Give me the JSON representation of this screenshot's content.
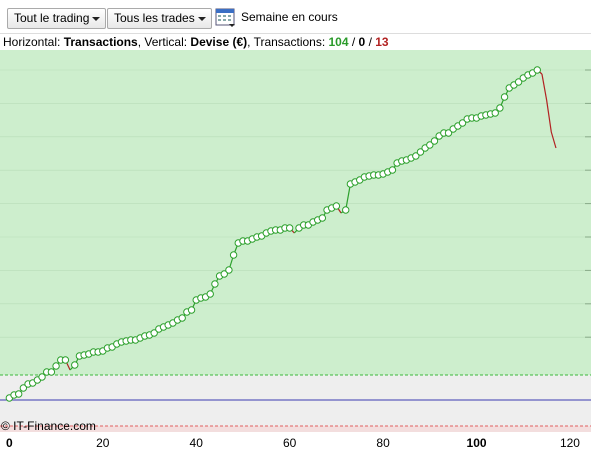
{
  "toolbar": {
    "trading_filter": "Tout le trading",
    "trade_filter": "Tous les trades",
    "period": "Semaine en cours"
  },
  "header": {
    "horizontal_label": "Horizontal: ",
    "horizontal_value": "Transactions",
    "vertical_label": ", Vertical: ",
    "vertical_value": "Devise (€)",
    "transactions_label": ", Transactions: ",
    "wins": 104,
    "separator_1": " / ",
    "neutral": 0,
    "separator_2": " / ",
    "losses": 13
  },
  "watermark": "© IT-Finance.com",
  "chart_data": {
    "type": "line",
    "x": [
      0,
      1,
      2,
      3,
      4,
      5,
      6,
      7,
      8,
      9,
      10,
      11,
      12,
      13,
      14,
      15,
      16,
      17,
      18,
      19,
      20,
      21,
      22,
      23,
      24,
      25,
      26,
      27,
      28,
      29,
      30,
      31,
      32,
      33,
      34,
      35,
      36,
      37,
      38,
      39,
      40,
      41,
      42,
      43,
      44,
      45,
      46,
      47,
      48,
      49,
      50,
      51,
      52,
      53,
      54,
      55,
      56,
      57,
      58,
      59,
      60,
      61,
      62,
      63,
      64,
      65,
      66,
      67,
      68,
      69,
      70,
      71,
      72,
      73,
      74,
      75,
      76,
      77,
      78,
      79,
      80,
      81,
      82,
      83,
      84,
      85,
      86,
      87,
      88,
      89,
      90,
      91,
      92,
      93,
      94,
      95,
      96,
      97,
      98,
      99,
      100,
      101,
      102,
      103,
      104,
      105,
      106,
      107,
      108,
      109,
      110,
      111,
      112,
      113,
      114,
      115,
      116,
      117
    ],
    "values": [
      2,
      5,
      6,
      12,
      16,
      17,
      20,
      23,
      28,
      28,
      34,
      40,
      40,
      30,
      35,
      44,
      45,
      46,
      48,
      48,
      49,
      52,
      53,
      56,
      58,
      59,
      60,
      60,
      62,
      64,
      65,
      67,
      71,
      73,
      75,
      77,
      80,
      82,
      88,
      90,
      100,
      102,
      103,
      106,
      116,
      124,
      126,
      130,
      145,
      157,
      159,
      159,
      161,
      163,
      164,
      167,
      169,
      170,
      170,
      172,
      172,
      167,
      172,
      175,
      175,
      178,
      180,
      182,
      190,
      192,
      194,
      187,
      190,
      216,
      218,
      220,
      223,
      224,
      225,
      225,
      226,
      228,
      230,
      237,
      239,
      240,
      242,
      244,
      248,
      252,
      255,
      259,
      264,
      267,
      267,
      271,
      274,
      277,
      281,
      282,
      282,
      284,
      285,
      286,
      287,
      292,
      303,
      312,
      315,
      318,
      322,
      325,
      327,
      330,
      326,
      300,
      268,
      252
    ],
    "gain_color": "#2ca02c",
    "loss_color": "#b22222",
    "xlim": [
      -2,
      124.5
    ],
    "ylim": [
      -32,
      350
    ],
    "xticks": [
      0,
      20,
      40,
      60,
      80,
      100,
      120
    ],
    "reference_lines": [
      {
        "value": 25,
        "color": "#3cb83c",
        "dashed": true
      },
      {
        "value": 0,
        "color": "#3a3ab0",
        "dashed": false
      },
      {
        "value": -26,
        "color": "#e06060",
        "dashed": true
      }
    ]
  }
}
